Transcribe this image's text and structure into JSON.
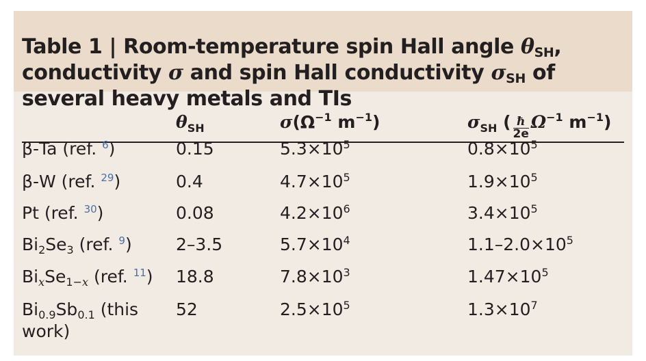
{
  "caption": {
    "table_label": "Table 1 | ",
    "part1": "Room-temperature spin Hall angle ",
    "theta": "θ",
    "sub_sh": "SH",
    "part2": ", conductivity ",
    "sigma": "σ",
    "part3": " and spin Hall conductivity ",
    "part4": " of several heavy metals and TIs"
  },
  "header": {
    "col1": {
      "sym": "θ",
      "sub": "SH"
    },
    "col2": {
      "sym": "σ",
      "units_open": "(Ω",
      "sup1": "−1",
      "units_mid": " m",
      "sup2": "−1",
      "units_close": ")"
    },
    "col3": {
      "sym": "σ",
      "sub": "SH",
      "open": " (",
      "frac_num": "ħ",
      "frac_den": "2e",
      "omega": "Ω",
      "sup1": "−1",
      "m": " m",
      "sup2": "−1",
      "close": ")"
    }
  },
  "rows": [
    {
      "material": "β-Ta (ref. ",
      "ref": "6",
      "close": ")",
      "theta": "0.15",
      "sigma": "5.3×10",
      "sigma_exp": "5",
      "sigma_sh": "0.8×10",
      "sigma_sh_exp": "5"
    },
    {
      "material": "β-W (ref. ",
      "ref": "29",
      "close": ")",
      "theta": "0.4",
      "sigma": "4.7×10",
      "sigma_exp": "5",
      "sigma_sh": "1.9×10",
      "sigma_sh_exp": "5"
    },
    {
      "material": "Pt (ref. ",
      "ref": "30",
      "close": ")",
      "theta": "0.08",
      "sigma": "4.2×10",
      "sigma_exp": "6",
      "sigma_sh": "3.4×10",
      "sigma_sh_exp": "5"
    },
    {
      "mat_a": "Bi",
      "mat_a_sub": "2",
      "mat_b": "Se",
      "mat_b_sub": "3",
      "material_tail": " (ref. ",
      "ref": "9",
      "close": ")",
      "theta": "2–3.5",
      "sigma": "5.7×10",
      "sigma_exp": "4",
      "sigma_sh": "1.1–2.0×10",
      "sigma_sh_exp": "5"
    },
    {
      "mat_a": "Bi",
      "mat_a_sub": "x",
      "mat_b": "Se",
      "mat_b_sub_a": "1−",
      "mat_b_sub_b": "x",
      "material_tail": " (ref. ",
      "ref": "11",
      "close": ")",
      "theta": "18.8",
      "sigma": "7.8×10",
      "sigma_exp": "3",
      "sigma_sh": "1.47×10",
      "sigma_sh_exp": "5"
    },
    {
      "mat_a": "Bi",
      "mat_a_sub": "0.9",
      "mat_b": "Sb",
      "mat_b_sub": "0.1",
      "material_tail": " (this work)",
      "theta": "52",
      "sigma": "2.5×10",
      "sigma_exp": "5",
      "sigma_sh": "1.3×10",
      "sigma_sh_exp": "7"
    }
  ]
}
